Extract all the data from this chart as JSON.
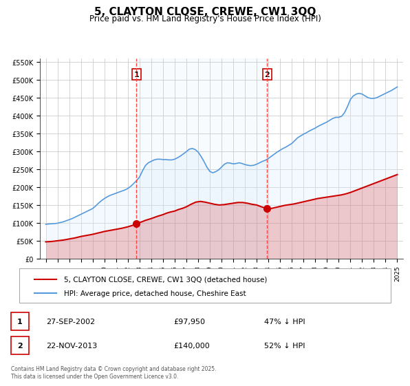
{
  "title": "5, CLAYTON CLOSE, CREWE, CW1 3QQ",
  "subtitle": "Price paid vs. HM Land Registry's House Price Index (HPI)",
  "ylabel": "",
  "background_color": "#ffffff",
  "plot_bg_color": "#ffffff",
  "grid_color": "#cccccc",
  "hpi_color": "#5599dd",
  "price_color": "#cc0000",
  "hpi_fill_color": "#ddeeff",
  "ylim": [
    0,
    560000
  ],
  "yticks": [
    0,
    50000,
    100000,
    150000,
    200000,
    250000,
    300000,
    350000,
    400000,
    450000,
    500000,
    550000
  ],
  "ytick_labels": [
    "£0",
    "£50K",
    "£100K",
    "£150K",
    "£200K",
    "£250K",
    "£300K",
    "£350K",
    "£400K",
    "£450K",
    "£500K",
    "£550K"
  ],
  "xlim_start": 1994.5,
  "xlim_end": 2025.5,
  "xticks": [
    1995,
    1996,
    1997,
    1998,
    1999,
    2000,
    2001,
    2002,
    2003,
    2004,
    2005,
    2006,
    2007,
    2008,
    2009,
    2010,
    2011,
    2012,
    2013,
    2014,
    2015,
    2016,
    2017,
    2018,
    2019,
    2020,
    2021,
    2022,
    2023,
    2024,
    2025
  ],
  "sale1_x": 2002.74,
  "sale1_y": 97950,
  "sale1_label": "1",
  "sale2_x": 2013.9,
  "sale2_y": 140000,
  "sale2_label": "2",
  "legend_label1": "5, CLAYTON CLOSE, CREWE, CW1 3QQ (detached house)",
  "legend_label2": "HPI: Average price, detached house, Cheshire East",
  "table_data": [
    {
      "num": "1",
      "date": "27-SEP-2002",
      "price": "£97,950",
      "hpi": "47% ↓ HPI"
    },
    {
      "num": "2",
      "date": "22-NOV-2013",
      "price": "£140,000",
      "hpi": "52% ↓ HPI"
    }
  ],
  "footnote": "Contains HM Land Registry data © Crown copyright and database right 2025.\nThis data is licensed under the Open Government Licence v3.0.",
  "hpi_data_x": [
    1995.0,
    1995.25,
    1995.5,
    1995.75,
    1996.0,
    1996.25,
    1996.5,
    1996.75,
    1997.0,
    1997.25,
    1997.5,
    1997.75,
    1998.0,
    1998.25,
    1998.5,
    1998.75,
    1999.0,
    1999.25,
    1999.5,
    1999.75,
    2000.0,
    2000.25,
    2000.5,
    2000.75,
    2001.0,
    2001.25,
    2001.5,
    2001.75,
    2002.0,
    2002.25,
    2002.5,
    2002.75,
    2003.0,
    2003.25,
    2003.5,
    2003.75,
    2004.0,
    2004.25,
    2004.5,
    2004.75,
    2005.0,
    2005.25,
    2005.5,
    2005.75,
    2006.0,
    2006.25,
    2006.5,
    2006.75,
    2007.0,
    2007.25,
    2007.5,
    2007.75,
    2008.0,
    2008.25,
    2008.5,
    2008.75,
    2009.0,
    2009.25,
    2009.5,
    2009.75,
    2010.0,
    2010.25,
    2010.5,
    2010.75,
    2011.0,
    2011.25,
    2011.5,
    2011.75,
    2012.0,
    2012.25,
    2012.5,
    2012.75,
    2013.0,
    2013.25,
    2013.5,
    2013.75,
    2014.0,
    2014.25,
    2014.5,
    2014.75,
    2015.0,
    2015.25,
    2015.5,
    2015.75,
    2016.0,
    2016.25,
    2016.5,
    2016.75,
    2017.0,
    2017.25,
    2017.5,
    2017.75,
    2018.0,
    2018.25,
    2018.5,
    2018.75,
    2019.0,
    2019.25,
    2019.5,
    2019.75,
    2020.0,
    2020.25,
    2020.5,
    2020.75,
    2021.0,
    2021.25,
    2021.5,
    2021.75,
    2022.0,
    2022.25,
    2022.5,
    2022.75,
    2023.0,
    2023.25,
    2023.5,
    2023.75,
    2024.0,
    2024.25,
    2024.5,
    2024.75,
    2025.0
  ],
  "hpi_data_y": [
    96000,
    97000,
    97500,
    98000,
    99000,
    101000,
    103000,
    106000,
    109000,
    112000,
    116000,
    120000,
    124000,
    128000,
    132000,
    136000,
    140000,
    147000,
    155000,
    162000,
    168000,
    173000,
    177000,
    180000,
    183000,
    186000,
    189000,
    192000,
    196000,
    202000,
    210000,
    218000,
    228000,
    245000,
    260000,
    268000,
    272000,
    276000,
    278000,
    278000,
    277000,
    277000,
    276000,
    276000,
    278000,
    282000,
    287000,
    293000,
    299000,
    306000,
    308000,
    305000,
    298000,
    286000,
    272000,
    256000,
    244000,
    240000,
    243000,
    248000,
    256000,
    264000,
    268000,
    267000,
    265000,
    266000,
    268000,
    266000,
    263000,
    261000,
    260000,
    261000,
    264000,
    268000,
    272000,
    275000,
    280000,
    286000,
    292000,
    298000,
    303000,
    308000,
    312000,
    317000,
    322000,
    330000,
    338000,
    343000,
    348000,
    352000,
    357000,
    361000,
    365000,
    370000,
    374000,
    378000,
    382000,
    387000,
    392000,
    395000,
    395000,
    398000,
    408000,
    425000,
    445000,
    455000,
    460000,
    462000,
    460000,
    455000,
    450000,
    448000,
    448000,
    450000,
    454000,
    458000,
    462000,
    466000,
    470000,
    475000,
    480000
  ],
  "price_data_x": [
    1995.0,
    1995.5,
    1996.0,
    1996.5,
    1997.0,
    1997.5,
    1998.0,
    1998.5,
    1999.0,
    1999.5,
    2000.0,
    2000.5,
    2001.0,
    2001.5,
    2002.0,
    2002.5,
    2002.74,
    2002.9,
    2003.2,
    2003.5,
    2004.0,
    2004.5,
    2005.0,
    2005.3,
    2005.6,
    2006.0,
    2006.3,
    2006.7,
    2007.0,
    2007.4,
    2007.8,
    2008.2,
    2008.6,
    2009.0,
    2009.4,
    2009.8,
    2010.2,
    2010.6,
    2011.0,
    2011.4,
    2011.8,
    2012.2,
    2012.6,
    2013.0,
    2013.4,
    2013.9,
    2014.2,
    2014.6,
    2015.0,
    2015.4,
    2015.8,
    2016.2,
    2016.6,
    2017.0,
    2017.4,
    2017.8,
    2018.2,
    2018.6,
    2019.0,
    2019.4,
    2019.8,
    2020.2,
    2020.6,
    2021.0,
    2021.4,
    2021.8,
    2022.2,
    2022.6,
    2023.0,
    2023.4,
    2023.8,
    2024.2,
    2024.6,
    2025.0
  ],
  "price_data_y": [
    47000,
    48000,
    50000,
    52000,
    55000,
    58000,
    62000,
    65000,
    68000,
    72000,
    76000,
    79000,
    82000,
    85000,
    89000,
    94000,
    97950,
    100000,
    103000,
    107000,
    112000,
    118000,
    123000,
    127000,
    130000,
    133000,
    137000,
    141000,
    145000,
    152000,
    158000,
    160000,
    158000,
    155000,
    152000,
    150000,
    151000,
    153000,
    155000,
    157000,
    157000,
    155000,
    152000,
    150000,
    145000,
    140000,
    140000,
    143000,
    146000,
    149000,
    151000,
    153000,
    156000,
    159000,
    162000,
    165000,
    168000,
    170000,
    172000,
    174000,
    176000,
    178000,
    181000,
    185000,
    190000,
    195000,
    200000,
    205000,
    210000,
    215000,
    220000,
    225000,
    230000,
    235000
  ]
}
